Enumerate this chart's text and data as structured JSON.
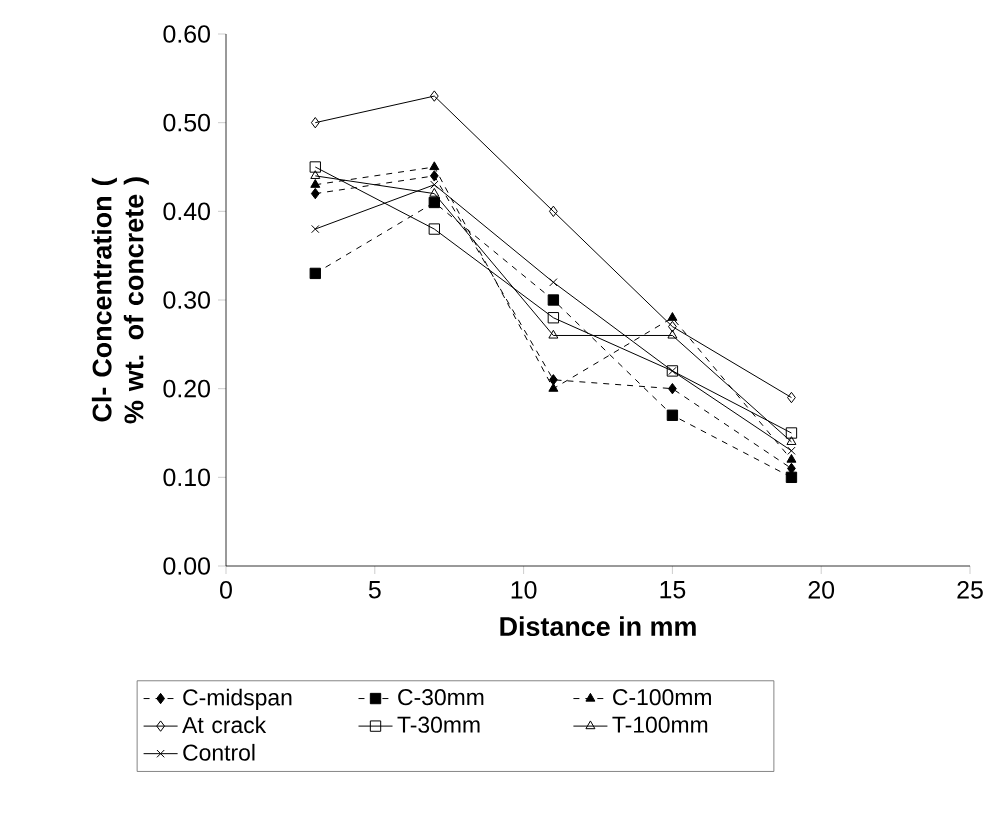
{
  "chart_data": {
    "type": "line",
    "xlabel": "Distance in mm",
    "ylabel": "Cl- Concentration ( % wt. of concrete )",
    "x": [
      3,
      7,
      11,
      15,
      19
    ],
    "series": [
      {
        "name": "C-midspan",
        "color": "#000000",
        "marker": "diamond",
        "line_style": "dashed",
        "values": [
          0.42,
          0.44,
          0.21,
          0.2,
          0.11
        ]
      },
      {
        "name": "C-30mm",
        "color": "#000000",
        "marker": "square",
        "line_style": "dashed",
        "values": [
          0.33,
          0.41,
          0.3,
          0.17,
          0.1
        ]
      },
      {
        "name": "C-100mm",
        "color": "#000000",
        "marker": "triangle",
        "line_style": "dashed",
        "values": [
          0.43,
          0.45,
          0.2,
          0.28,
          0.12
        ]
      },
      {
        "name": "At crack",
        "color": "#000000",
        "marker": "diamond",
        "line_style": "solid",
        "values": [
          0.5,
          0.53,
          0.4,
          0.27,
          0.19
        ]
      },
      {
        "name": "T-30mm",
        "color": "#000000",
        "marker": "square",
        "line_style": "solid",
        "values": [
          0.45,
          0.38,
          0.28,
          0.22,
          0.15
        ]
      },
      {
        "name": "T-100mm",
        "color": "#000000",
        "marker": "triangle",
        "line_style": "solid",
        "values": [
          0.44,
          0.42,
          0.26,
          0.26,
          0.14
        ]
      },
      {
        "name": "Control",
        "color": "#000000",
        "marker": "cross",
        "line_style": "solid",
        "values": [
          0.38,
          0.43,
          0.32,
          0.22,
          0.13
        ]
      }
    ],
    "xlim": [
      0,
      25
    ],
    "xticks": [
      0,
      5,
      10,
      15,
      20,
      25
    ],
    "ylim": [
      0,
      0.6
    ],
    "yticks": [
      {
        "value": 0,
        "label": "0.00"
      },
      {
        "value": 0.1,
        "label": "0.10"
      },
      {
        "value": 0.2,
        "label": "0.20"
      },
      {
        "value": 0.3,
        "label": "0.30"
      },
      {
        "value": 0.4,
        "label": "0.40"
      },
      {
        "value": 0.5,
        "label": "0.50"
      },
      {
        "value": 0.6,
        "label": "0.60"
      }
    ],
    "grid": false,
    "legend": "bottom"
  }
}
